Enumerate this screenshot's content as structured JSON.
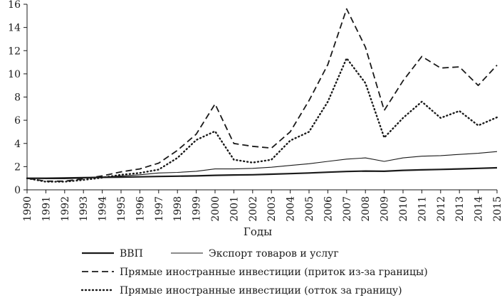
{
  "chart_data": {
    "type": "line",
    "title": "",
    "xlabel": "Годы",
    "ylabel": "",
    "x": [
      1990,
      1991,
      1992,
      1993,
      1994,
      1995,
      1996,
      1997,
      1998,
      1999,
      2000,
      2001,
      2002,
      2003,
      2004,
      2005,
      2006,
      2007,
      2008,
      2009,
      2010,
      2011,
      2012,
      2013,
      2014,
      2015
    ],
    "xlim": [
      1990,
      2015
    ],
    "ylim": [
      0,
      16
    ],
    "yticks": [
      0,
      2,
      4,
      6,
      8,
      10,
      12,
      14,
      16
    ],
    "grid": false,
    "legend_position": "bottom",
    "series": [
      {
        "name": "ВВП",
        "style": "solid-thick",
        "values": [
          1.0,
          1.0,
          1.02,
          1.05,
          1.08,
          1.1,
          1.12,
          1.15,
          1.18,
          1.2,
          1.25,
          1.28,
          1.3,
          1.35,
          1.4,
          1.45,
          1.52,
          1.58,
          1.62,
          1.6,
          1.68,
          1.72,
          1.76,
          1.8,
          1.85,
          1.9
        ]
      },
      {
        "name": "Экспорт товаров и услуг",
        "style": "solid-thin",
        "values": [
          1.0,
          0.95,
          0.95,
          1.0,
          1.1,
          1.2,
          1.3,
          1.45,
          1.5,
          1.6,
          1.8,
          1.8,
          1.85,
          1.95,
          2.1,
          2.25,
          2.45,
          2.65,
          2.75,
          2.45,
          2.75,
          2.9,
          2.95,
          3.05,
          3.15,
          3.3
        ]
      },
      {
        "name": "Прямые иностранные инвестиции (приток из-за границы)",
        "style": "dashed",
        "values": [
          1.0,
          0.75,
          0.75,
          0.95,
          1.2,
          1.55,
          1.8,
          2.3,
          3.4,
          4.8,
          7.4,
          4.0,
          3.75,
          3.6,
          5.0,
          7.7,
          10.8,
          15.6,
          12.3,
          6.85,
          9.4,
          11.5,
          10.5,
          10.6,
          9.0,
          10.75
        ]
      },
      {
        "name": "Прямые иностранные инвестиции (отток за границу)",
        "style": "dotted",
        "values": [
          1.0,
          0.7,
          0.7,
          0.85,
          1.05,
          1.3,
          1.45,
          1.75,
          2.75,
          4.3,
          5.05,
          2.6,
          2.35,
          2.6,
          4.25,
          5.0,
          7.6,
          11.35,
          9.2,
          4.5,
          6.2,
          7.6,
          6.2,
          6.8,
          5.55,
          6.25
        ]
      }
    ]
  }
}
